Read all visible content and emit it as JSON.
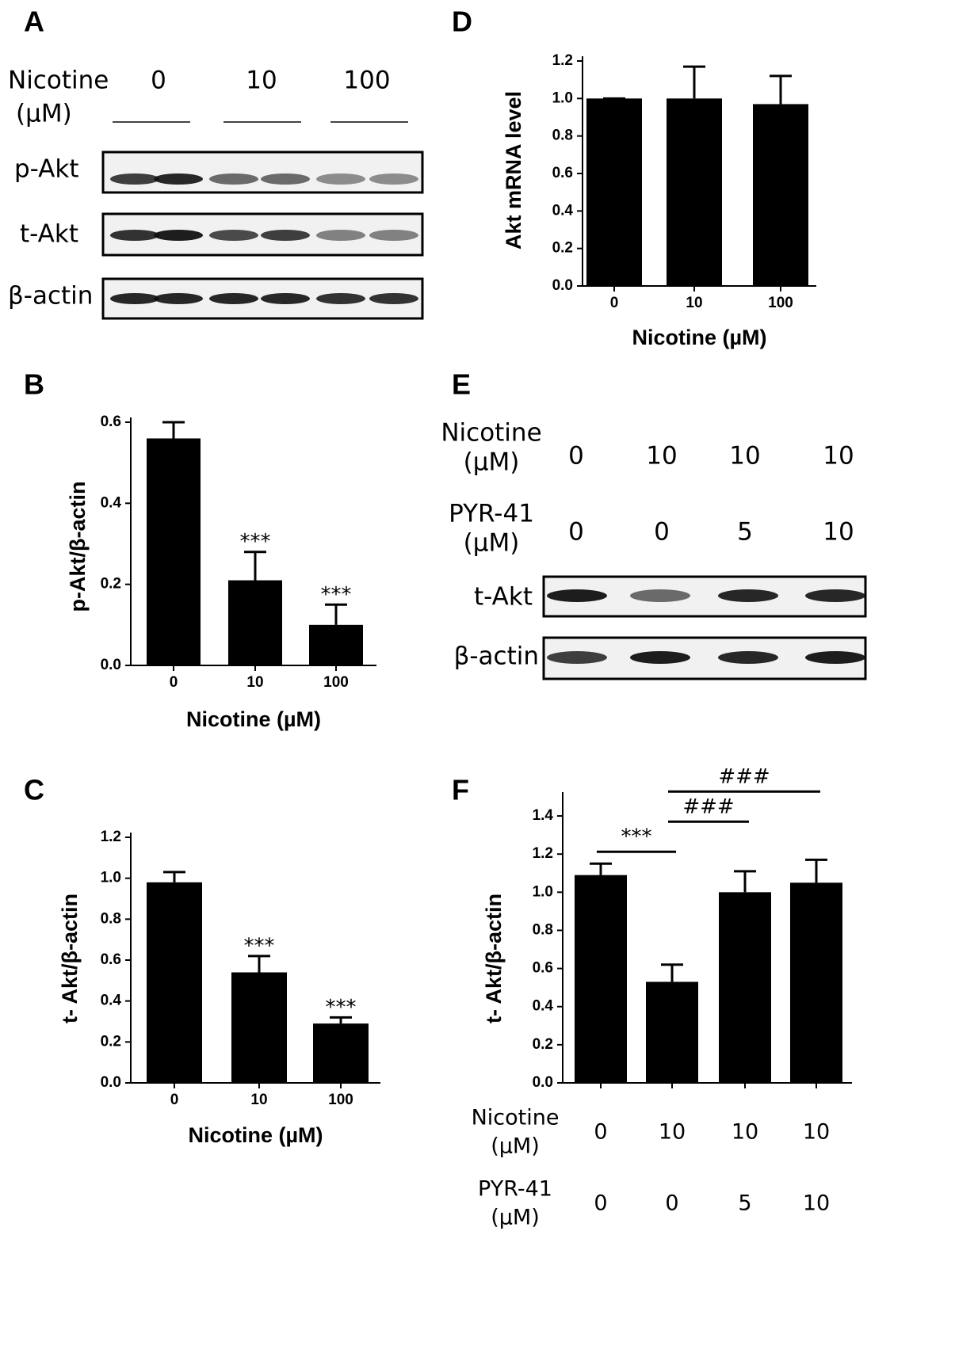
{
  "blots": [
    {
      "panel_label": "A",
      "treatments": [
        {
          "label_lines": [
            "Nicotine",
            "(µM)"
          ],
          "levels": [
            "0",
            "10",
            "100"
          ]
        }
      ],
      "rows": [
        "p-Akt",
        "t-Akt",
        "β-actin"
      ]
    },
    {
      "panel_label": "E",
      "treatments": [
        {
          "label_lines": [
            "Nicotine",
            "(µM)"
          ],
          "levels": [
            "0",
            "10",
            "10",
            "10"
          ]
        },
        {
          "label_lines": [
            "PYR-41",
            "(µM)"
          ],
          "levels": [
            "0",
            "0",
            "5",
            "10"
          ]
        }
      ],
      "rows": [
        "t-Akt",
        "β-actin"
      ]
    }
  ],
  "chart_data": [
    {
      "type": "bar",
      "panel_label": "B",
      "y_label": "p-Akt/β-actin",
      "x_label": "Nicotine (µM)",
      "categories": [
        "0",
        "10",
        "100"
      ],
      "values": [
        0.56,
        0.21,
        0.1
      ],
      "errors": [
        0.04,
        0.07,
        0.05
      ],
      "annotations": [
        null,
        "***",
        "***"
      ],
      "color": "#000000",
      "ylim": [
        0,
        0.6
      ],
      "yticks": [
        {
          "value": 0,
          "label": "0.0"
        },
        0.2,
        0.4,
        0.6
      ]
    },
    {
      "type": "bar",
      "panel_label": "C",
      "y_label": "t- Akt/β-actin",
      "x_label": "Nicotine (µM)",
      "categories": [
        "0",
        "10",
        "100"
      ],
      "values": [
        0.98,
        0.54,
        0.29
      ],
      "errors": [
        0.05,
        0.08,
        0.03
      ],
      "annotations": [
        null,
        "***",
        "***"
      ],
      "color": "#000000",
      "ylim": [
        0,
        1.2
      ],
      "yticks": [
        {
          "value": 0,
          "label": "0.0"
        },
        0.2,
        0.4,
        0.6,
        0.8,
        {
          "value": 1,
          "label": "1.0"
        },
        1.2
      ]
    },
    {
      "type": "bar",
      "panel_label": "D",
      "y_label": "Akt mRNA level",
      "x_label": "Nicotine (µM)",
      "categories": [
        "0",
        "10",
        "100"
      ],
      "values": [
        1.0,
        1.0,
        0.97
      ],
      "errors": [
        0,
        0.17,
        0.15
      ],
      "color": "#000000",
      "ylim": [
        0,
        1.2
      ],
      "yticks": [
        {
          "value": 0,
          "label": "0.0"
        },
        0.2,
        0.4,
        0.6,
        0.8,
        {
          "value": 1,
          "label": "1.0"
        },
        1.2
      ]
    },
    {
      "type": "bar",
      "panel_label": "F",
      "y_label": "t- Akt/β-actin",
      "category_rows": [
        {
          "label_lines": [
            "Nicotine",
            "(µM)"
          ],
          "categories": [
            "0",
            "10",
            "10",
            "10"
          ]
        },
        {
          "label_lines": [
            "PYR-41",
            "(µM)"
          ],
          "categories": [
            "0",
            "0",
            "5",
            "10"
          ]
        }
      ],
      "values": [
        1.09,
        0.53,
        1.0,
        1.05
      ],
      "errors": [
        0.06,
        0.09,
        0.11,
        0.12
      ],
      "color": "#000000",
      "comparisons": [
        {
          "from": 0,
          "to": 1,
          "text": "***"
        },
        {
          "from": 1,
          "to": 2,
          "text": "###"
        },
        {
          "from": 1,
          "to": 3,
          "text": "###"
        }
      ],
      "ylim": [
        0,
        1.5
      ],
      "yticks": [
        {
          "value": 0,
          "label": "0.0"
        },
        0.2,
        0.4,
        0.6,
        0.8,
        {
          "value": 1,
          "label": "1.0"
        },
        1.2,
        1.4
      ]
    }
  ]
}
